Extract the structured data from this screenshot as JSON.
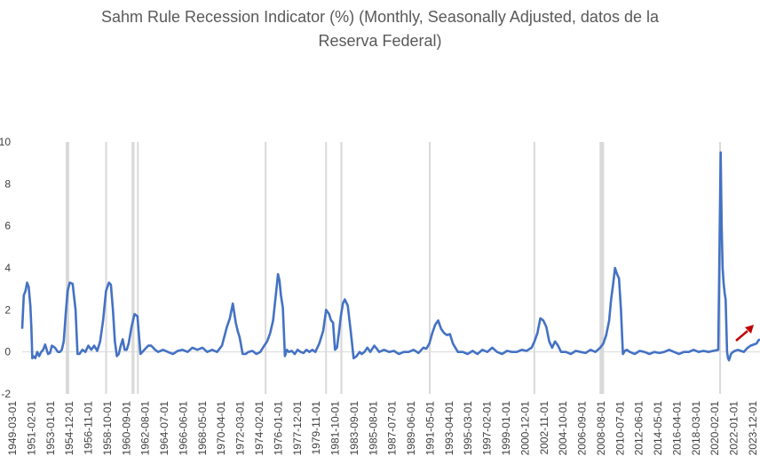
{
  "title_line1": "Sahm Rule Recession Indicator (%) (Monthly, Seasonally Adjusted, datos de la",
  "title_line2": "Reserva Federal)",
  "colors": {
    "line": "#4472C4",
    "recession": "#D9D9D9",
    "arrow": "#C00000",
    "text": "#595959",
    "axis": "#D9D9D9"
  },
  "chart_data": {
    "type": "line",
    "title": "Sahm Rule Recession Indicator (%) (Monthly, Seasonally Adjusted, datos de la Reserva Federal)",
    "xlabel": "",
    "ylabel": "",
    "xlim": [
      1949.17,
      2024.25
    ],
    "ylim": [
      -2,
      10
    ],
    "yticks": [
      -2,
      0,
      2,
      4,
      6,
      8,
      10
    ],
    "ytick_labels": [
      "-2",
      "0",
      "2",
      "4",
      "6",
      "8",
      "10"
    ],
    "x_tick_labels": [
      "1949-03-01",
      "1951-02-01",
      "1953-01-01",
      "1954-12-01",
      "1956-11-01",
      "1958-10-01",
      "1960-09-01",
      "1962-08-01",
      "1964-07-01",
      "1966-06-01",
      "1968-05-01",
      "1970-04-01",
      "1972-03-01",
      "1974-02-01",
      "1976-01-01",
      "1977-12-01",
      "1979-11-01",
      "1981-10-01",
      "1983-09-01",
      "1985-08-01",
      "1987-07-01",
      "1989-06-01",
      "1991-05-01",
      "1993-04-01",
      "1995-03-01",
      "1997-02-01",
      "1999-01-01",
      "2000-12-01",
      "2002-11-01",
      "2004-10-01",
      "2006-09-01",
      "2008-08-01",
      "2010-07-01",
      "2012-06-01",
      "2014-05-01",
      "2016-04-01",
      "2018-03-01",
      "2020-02-01",
      "2022-01-01",
      "2023-12-01"
    ],
    "recession_bars": [
      [
        1953.6,
        1953.95
      ],
      [
        1957.62,
        1957.72
      ],
      [
        1960.3,
        1960.6
      ],
      [
        1960.85,
        1960.92
      ],
      [
        1973.85,
        1973.95
      ],
      [
        1980.0,
        1980.1
      ],
      [
        1981.55,
        1981.75
      ],
      [
        1990.55,
        1990.7
      ],
      [
        2001.2,
        2001.28
      ],
      [
        2007.92,
        2008.38
      ],
      [
        2020.1,
        2020.2
      ]
    ],
    "series": [
      {
        "name": "Sahm Rule Recession Indicator",
        "x": [
          1949.17,
          1949.33,
          1949.5,
          1949.67,
          1949.83,
          1950.0,
          1950.1,
          1950.2,
          1950.3,
          1950.5,
          1950.7,
          1950.9,
          1951.1,
          1951.3,
          1951.5,
          1951.8,
          1952.0,
          1952.2,
          1952.5,
          1952.8,
          1953.0,
          1953.2,
          1953.4,
          1953.6,
          1953.8,
          1954.0,
          1954.3,
          1954.6,
          1954.8,
          1955.0,
          1955.3,
          1955.6,
          1955.9,
          1956.2,
          1956.5,
          1956.8,
          1957.1,
          1957.4,
          1957.7,
          1958.0,
          1958.2,
          1958.4,
          1958.6,
          1958.8,
          1959.0,
          1959.2,
          1959.4,
          1959.6,
          1959.8,
          1960.0,
          1960.3,
          1960.6,
          1960.9,
          1961.2,
          1961.4,
          1961.6,
          1961.8,
          1962.0,
          1962.3,
          1962.7,
          1963.0,
          1963.5,
          1964.0,
          1964.5,
          1965.0,
          1965.5,
          1966.0,
          1966.5,
          1967.0,
          1967.5,
          1968.0,
          1968.5,
          1969.0,
          1969.5,
          1970.0,
          1970.3,
          1970.6,
          1970.9,
          1971.1,
          1971.3,
          1971.6,
          1971.9,
          1972.2,
          1972.6,
          1973.0,
          1973.4,
          1973.8,
          1974.1,
          1974.4,
          1974.7,
          1975.0,
          1975.2,
          1975.35,
          1975.5,
          1975.7,
          1975.9,
          1976.1,
          1976.3,
          1976.6,
          1976.9,
          1977.2,
          1977.5,
          1977.8,
          1978.1,
          1978.4,
          1978.7,
          1979.0,
          1979.4,
          1979.8,
          1980.1,
          1980.4,
          1980.6,
          1980.8,
          1981.0,
          1981.2,
          1981.4,
          1981.6,
          1981.8,
          1982.0,
          1982.3,
          1982.6,
          1982.9,
          1983.2,
          1983.5,
          1983.7,
          1984.0,
          1984.3,
          1984.6,
          1985.0,
          1985.5,
          1986.0,
          1986.5,
          1987.0,
          1987.5,
          1988.0,
          1988.5,
          1989.0,
          1989.5,
          1990.0,
          1990.3,
          1990.6,
          1990.9,
          1991.2,
          1991.5,
          1991.8,
          1992.1,
          1992.4,
          1992.7,
          1993.0,
          1993.5,
          1994.0,
          1994.5,
          1995.0,
          1995.5,
          1996.0,
          1996.5,
          1997.0,
          1997.5,
          1998.0,
          1998.5,
          1999.0,
          1999.5,
          2000.0,
          2000.5,
          2001.0,
          2001.3,
          2001.6,
          2001.9,
          2002.2,
          2002.5,
          2002.8,
          2003.1,
          2003.4,
          2003.7,
          2004.0,
          2004.5,
          2005.0,
          2005.5,
          2006.0,
          2006.5,
          2007.0,
          2007.5,
          2008.0,
          2008.3,
          2008.6,
          2008.9,
          2009.1,
          2009.3,
          2009.5,
          2009.7,
          2009.9,
          2010.1,
          2010.3,
          2010.5,
          2010.7,
          2011.0,
          2011.5,
          2012.0,
          2012.5,
          2013.0,
          2013.5,
          2014.0,
          2014.5,
          2015.0,
          2015.5,
          2016.0,
          2016.5,
          2017.0,
          2017.5,
          2018.0,
          2018.5,
          2019.0,
          2019.5,
          2020.0,
          2020.25,
          2020.35,
          2020.45,
          2020.55,
          2020.65,
          2020.75,
          2020.9,
          2021.0,
          2021.1,
          2021.3,
          2021.5,
          2021.7,
          2022.0,
          2022.3,
          2022.6,
          2023.0,
          2023.3,
          2023.6,
          2023.9,
          2024.1,
          2024.25
        ],
        "values": [
          1.1,
          2.7,
          2.9,
          3.3,
          3.1,
          2.2,
          1.2,
          -0.3,
          -0.2,
          -0.3,
          0.0,
          -0.2,
          0.0,
          0.1,
          0.35,
          -0.1,
          -0.05,
          0.3,
          0.2,
          0.0,
          0.0,
          0.1,
          0.5,
          1.8,
          2.9,
          3.3,
          3.25,
          2.0,
          -0.1,
          -0.1,
          0.1,
          0.0,
          0.3,
          0.1,
          0.3,
          0.05,
          0.5,
          1.5,
          2.9,
          3.3,
          3.2,
          2.0,
          0.5,
          -0.2,
          -0.1,
          0.3,
          0.6,
          0.1,
          0.1,
          0.4,
          1.2,
          1.8,
          1.7,
          -0.1,
          0.0,
          0.1,
          0.2,
          0.3,
          0.3,
          0.1,
          0.0,
          0.1,
          0.0,
          -0.1,
          0.05,
          0.1,
          0.0,
          0.2,
          0.1,
          0.2,
          0.0,
          0.1,
          0.0,
          0.3,
          1.2,
          1.6,
          2.3,
          1.4,
          1.0,
          0.7,
          -0.1,
          -0.1,
          0.0,
          0.05,
          -0.1,
          0.0,
          0.3,
          0.5,
          0.9,
          1.5,
          2.8,
          3.7,
          3.4,
          2.7,
          2.1,
          -0.2,
          0.1,
          0.0,
          0.05,
          -0.1,
          0.1,
          0.0,
          -0.05,
          0.1,
          0.0,
          0.1,
          0.0,
          0.4,
          1.0,
          2.0,
          1.8,
          1.5,
          1.4,
          0.1,
          0.2,
          0.9,
          1.7,
          2.3,
          2.5,
          2.2,
          1.0,
          -0.3,
          -0.2,
          0.0,
          -0.1,
          0.0,
          0.2,
          0.0,
          0.3,
          0.0,
          0.1,
          0.0,
          0.05,
          -0.1,
          0.0,
          0.0,
          0.1,
          -0.05,
          0.2,
          0.15,
          0.4,
          0.9,
          1.3,
          1.5,
          1.1,
          0.9,
          0.8,
          0.85,
          0.4,
          0.0,
          0.0,
          -0.1,
          0.05,
          -0.1,
          0.1,
          0.0,
          0.2,
          0.0,
          -0.1,
          0.05,
          0.0,
          0.0,
          0.1,
          0.05,
          0.2,
          0.5,
          0.9,
          1.6,
          1.5,
          1.2,
          0.5,
          0.2,
          0.5,
          0.3,
          0.0,
          0.0,
          -0.1,
          0.05,
          0.0,
          -0.05,
          0.1,
          0.0,
          0.2,
          0.4,
          0.8,
          1.5,
          2.5,
          3.2,
          4.0,
          3.7,
          3.5,
          2.0,
          -0.1,
          0.05,
          0.1,
          0.0,
          -0.1,
          0.05,
          0.0,
          -0.1,
          0.0,
          -0.05,
          0.0,
          0.1,
          0.0,
          -0.1,
          0.0,
          0.0,
          0.1,
          0.0,
          0.05,
          0.0,
          0.05,
          0.1,
          9.5,
          6.0,
          4.0,
          3.3,
          2.8,
          2.5,
          0.0,
          -0.3,
          -0.4,
          -0.1,
          0.0,
          0.05,
          0.1,
          0.05,
          0.0,
          0.2,
          0.3,
          0.35,
          0.4,
          0.55,
          0.6
        ]
      }
    ],
    "annotation": "red-arrow-upward"
  }
}
